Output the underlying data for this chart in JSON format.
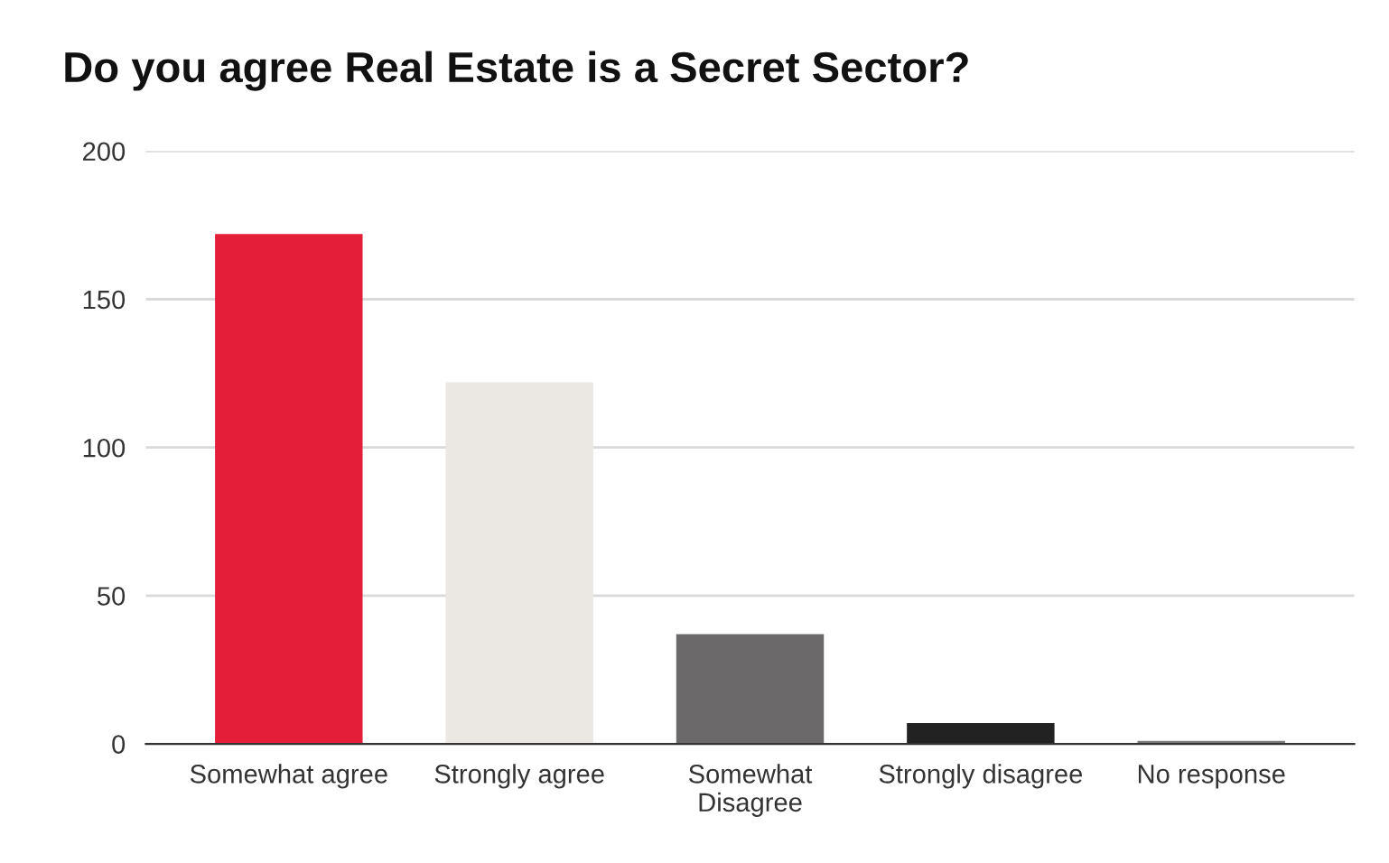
{
  "chart_data": {
    "type": "bar",
    "title": "Do you agree Real Estate is a Secret Sector?",
    "categories": [
      "Somewhat agree",
      "Strongly agree",
      "Somewhat\nDisagree",
      "Strongly disagree",
      "No response"
    ],
    "values": [
      172,
      122,
      37,
      7,
      1
    ],
    "colors": [
      "#e41d38",
      "#ebe8e3",
      "#6b696a",
      "#222222",
      "#777777"
    ],
    "ylim": [
      0,
      200
    ],
    "yticks": [
      0,
      50,
      100,
      150,
      200
    ],
    "grid": "y"
  }
}
